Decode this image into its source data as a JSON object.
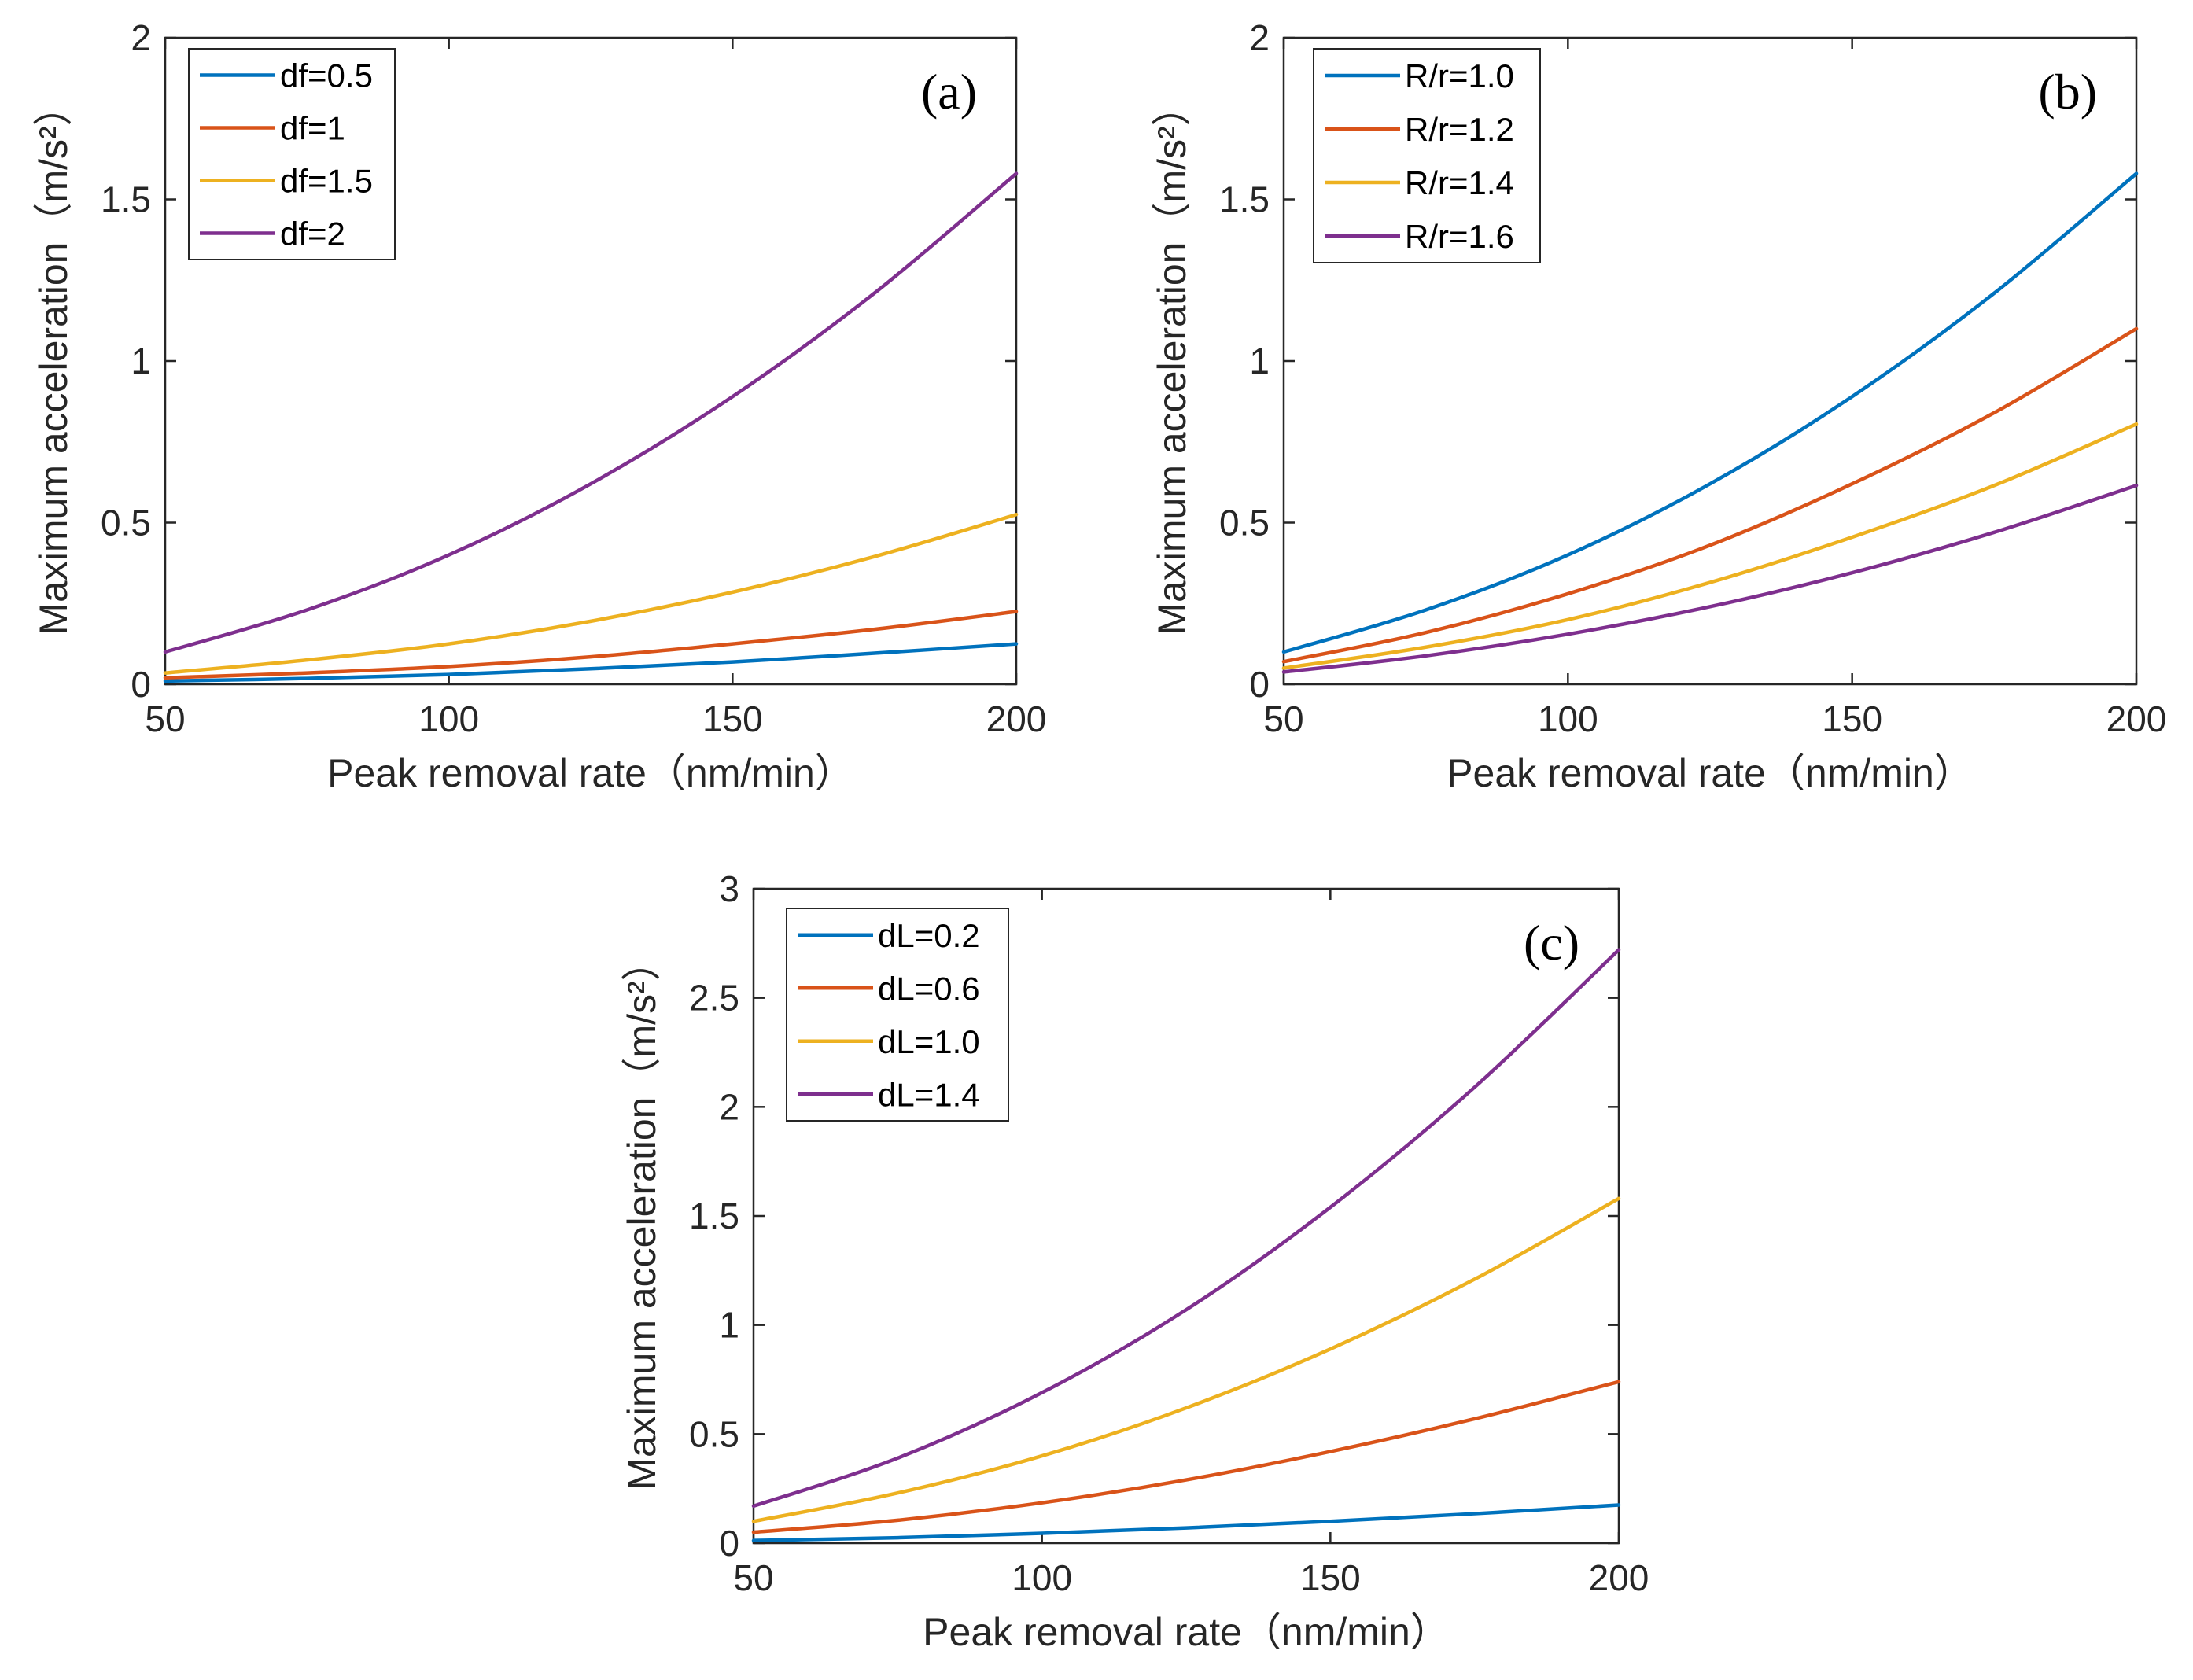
{
  "colors": {
    "blue": "#0072BD",
    "orange": "#D95319",
    "yellow": "#EDB120",
    "purple": "#7E2F8E",
    "axis": "#262626"
  },
  "chart_data": [
    {
      "type": "line",
      "panel_label": "(a)",
      "xlabel": "Peak removal rate（nm/min）",
      "ylabel": "Maximum acceleration（m/s²）",
      "xlim": [
        50,
        200
      ],
      "ylim": [
        0,
        2
      ],
      "xticks": [
        "50",
        "100",
        "150",
        "200"
      ],
      "yticks": [
        "0",
        "0.5",
        "1",
        "1.5",
        "2"
      ],
      "grid": false,
      "legend_position": "top-left",
      "x": [
        50,
        75,
        100,
        125,
        150,
        175,
        200
      ],
      "series": [
        {
          "name": "df=0.5",
          "color": "blue",
          "values": [
            0.01,
            0.018,
            0.03,
            0.048,
            0.069,
            0.096,
            0.125
          ]
        },
        {
          "name": "df=1",
          "color": "orange",
          "values": [
            0.02,
            0.035,
            0.055,
            0.085,
            0.125,
            0.17,
            0.225
          ]
        },
        {
          "name": "df=1.5",
          "color": "yellow",
          "values": [
            0.035,
            0.075,
            0.125,
            0.195,
            0.285,
            0.395,
            0.525
          ]
        },
        {
          "name": "df=2",
          "color": "purple",
          "values": [
            0.1,
            0.23,
            0.4,
            0.62,
            0.89,
            1.21,
            1.58
          ]
        }
      ]
    },
    {
      "type": "line",
      "panel_label": "(b)",
      "xlabel": "Peak removal rate（nm/min）",
      "ylabel": "Maximum acceleration（m/s²）",
      "xlim": [
        50,
        200
      ],
      "ylim": [
        0,
        2
      ],
      "xticks": [
        "50",
        "100",
        "150",
        "200"
      ],
      "yticks": [
        "0",
        "0.5",
        "1",
        "1.5",
        "2"
      ],
      "grid": false,
      "legend_position": "top-left",
      "x": [
        50,
        75,
        100,
        125,
        150,
        175,
        200
      ],
      "series": [
        {
          "name": "R/r=1.0",
          "color": "blue",
          "values": [
            0.1,
            0.23,
            0.4,
            0.62,
            0.89,
            1.21,
            1.58
          ]
        },
        {
          "name": "R/r=1.2",
          "color": "orange",
          "values": [
            0.07,
            0.16,
            0.28,
            0.43,
            0.62,
            0.84,
            1.1
          ]
        },
        {
          "name": "R/r=1.4",
          "color": "yellow",
          "values": [
            0.05,
            0.115,
            0.2,
            0.315,
            0.455,
            0.615,
            0.805
          ]
        },
        {
          "name": "R/r=1.6",
          "color": "purple",
          "values": [
            0.038,
            0.088,
            0.155,
            0.24,
            0.345,
            0.47,
            0.615
          ]
        }
      ]
    },
    {
      "type": "line",
      "panel_label": "(c)",
      "xlabel": "Peak removal rate（nm/min）",
      "ylabel": "Maximum acceleration（m/s²）",
      "xlim": [
        50,
        200
      ],
      "ylim": [
        0,
        3
      ],
      "xticks": [
        "50",
        "100",
        "150",
        "200"
      ],
      "yticks": [
        "0",
        "0.5",
        "1",
        "1.5",
        "2",
        "2.5",
        "3"
      ],
      "grid": false,
      "legend_position": "top-left",
      "x": [
        50,
        75,
        100,
        125,
        150,
        175,
        200
      ],
      "series": [
        {
          "name": "dL=0.2",
          "color": "blue",
          "values": [
            0.012,
            0.025,
            0.045,
            0.07,
            0.1,
            0.135,
            0.175
          ]
        },
        {
          "name": "dL=0.6",
          "color": "orange",
          "values": [
            0.05,
            0.105,
            0.185,
            0.29,
            0.42,
            0.57,
            0.74
          ]
        },
        {
          "name": "dL=1.0",
          "color": "yellow",
          "values": [
            0.1,
            0.23,
            0.4,
            0.62,
            0.89,
            1.21,
            1.58
          ]
        },
        {
          "name": "dL=1.4",
          "color": "purple",
          "values": [
            0.17,
            0.39,
            0.69,
            1.07,
            1.54,
            2.09,
            2.72
          ]
        }
      ]
    }
  ]
}
